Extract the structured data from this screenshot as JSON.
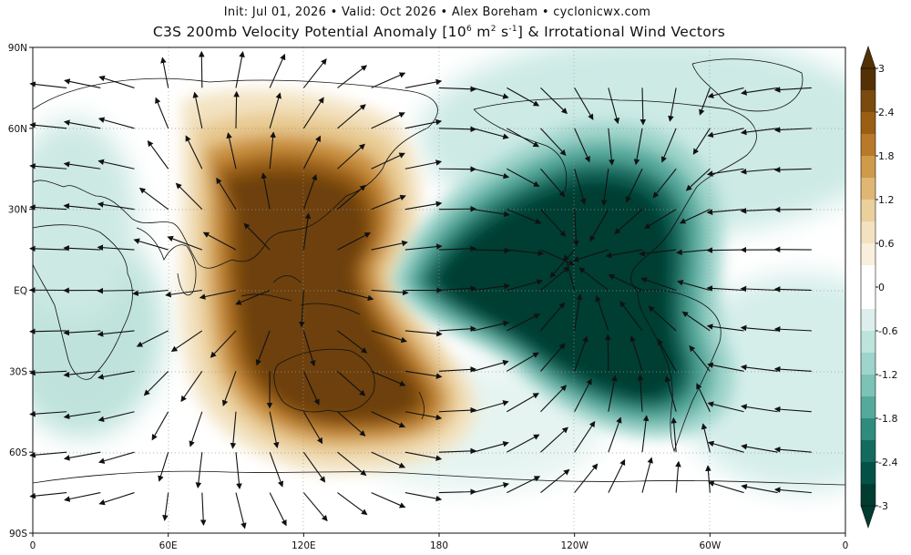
{
  "header": {
    "subtitle": "Init: Jul 01, 2026 • Valid: Oct 2026 • Alex Boreham • cyclonicwx.com",
    "title_main": "C3S 200mb Velocity Potential Anomaly [10",
    "title_exp": "6",
    "title_unit_a": " m",
    "title_unit_exp": "2",
    "title_unit_b": " s",
    "title_unit_exp2": "-1",
    "title_tail": "] & Irrotational Wind Vectors"
  },
  "map": {
    "projection": "equirectangular",
    "lon_range": [
      0,
      360
    ],
    "lat_range": [
      -90,
      90
    ],
    "lat_ticks": [
      {
        "value": 90,
        "label": "90N"
      },
      {
        "value": 60,
        "label": "60N"
      },
      {
        "value": 30,
        "label": "30N"
      },
      {
        "value": 0,
        "label": "EQ"
      },
      {
        "value": -30,
        "label": "30S"
      },
      {
        "value": -60,
        "label": "60S"
      },
      {
        "value": -90,
        "label": "90S"
      }
    ],
    "lon_ticks": [
      {
        "value": 0,
        "label": "0"
      },
      {
        "value": 60,
        "label": "60E"
      },
      {
        "value": 120,
        "label": "120E"
      },
      {
        "value": 180,
        "label": "180"
      },
      {
        "value": 240,
        "label": "120W"
      },
      {
        "value": 300,
        "label": "60W"
      },
      {
        "value": 360,
        "label": "0"
      }
    ],
    "anomaly_centers": [
      {
        "name": "positive-anomaly-maritime-continent",
        "lon": 125,
        "lat": 5,
        "value": 3
      },
      {
        "name": "negative-anomaly-east-pacific",
        "lon": 230,
        "lat": 10,
        "value": -3
      }
    ]
  },
  "colorbar": {
    "levels": [
      -3,
      -2.7,
      -2.4,
      -2.1,
      -1.8,
      -1.5,
      -1.2,
      -0.9,
      -0.6,
      -0.3,
      0.3,
      0.6,
      0.9,
      1.2,
      1.5,
      1.8,
      2.1,
      2.4,
      2.7,
      3
    ],
    "tick_labels": [
      "3",
      "2.4",
      "1.8",
      "1.2",
      "0.6",
      "0",
      "-0.6",
      "-1.2",
      "-1.8",
      "-2.4",
      "-3"
    ],
    "colors_top_to_bottom": [
      "#543005",
      "#7a4a0e",
      "#9a5f15",
      "#b87a2a",
      "#cf9a4a",
      "#dfb773",
      "#ebd09c",
      "#f3e2c0",
      "#f8efdd",
      "#ffffff",
      "#ffffff",
      "#dcefec",
      "#bde3dd",
      "#9dd4cb",
      "#7cc2b6",
      "#55a99c",
      "#2f8b7e",
      "#136b5f",
      "#045247",
      "#003c30"
    ]
  }
}
